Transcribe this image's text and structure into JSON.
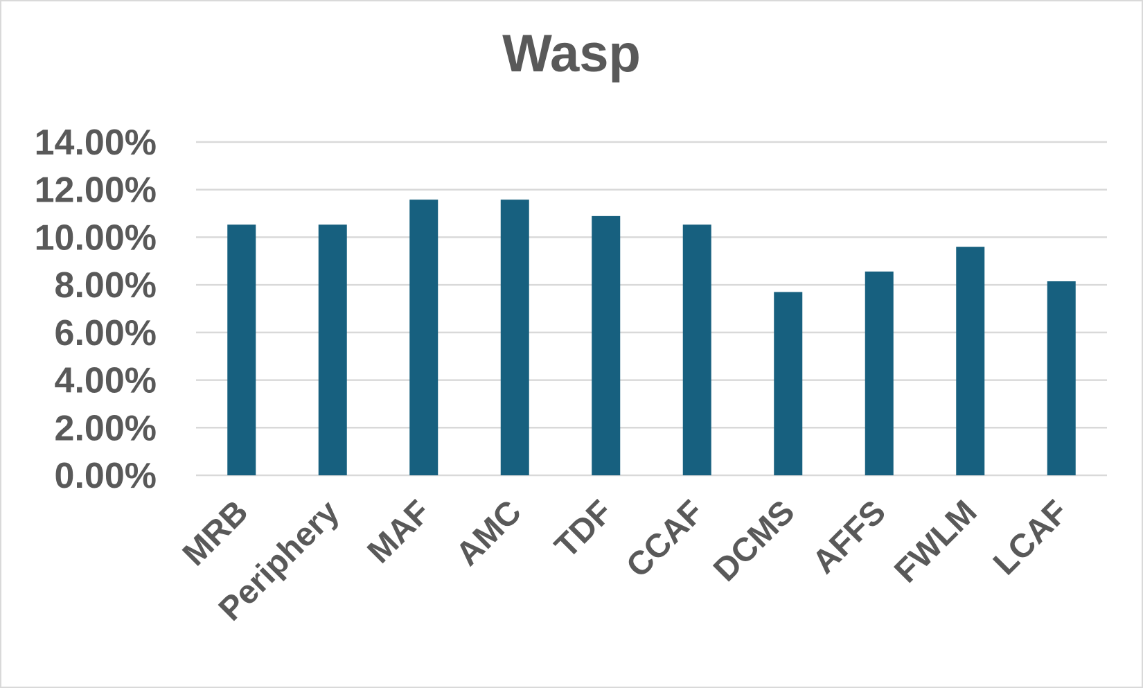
{
  "chart_data": {
    "type": "bar",
    "title": "Wasp",
    "xlabel": "",
    "ylabel": "",
    "ylim": [
      0,
      0.14
    ],
    "ytick_values": [
      0,
      0.02,
      0.04,
      0.06,
      0.08,
      0.1,
      0.12,
      0.14
    ],
    "ytick_labels": [
      "0.00%",
      "2.00%",
      "4.00%",
      "6.00%",
      "8.00%",
      "10.00%",
      "12.00%",
      "14.00%"
    ],
    "grid": true,
    "legend": "none",
    "bar_color": "#17607f",
    "grid_color": "#d9d9d9",
    "text_color": "#595959",
    "categories": [
      "MRB",
      "Periphery",
      "MAF",
      "AMC",
      "TDF",
      "CCAF",
      "DCMS",
      "AFFS",
      "FWLM",
      "LCAF"
    ],
    "values": [
      0.1053,
      0.1053,
      0.1158,
      0.1158,
      0.1089,
      0.1053,
      0.077,
      0.0856,
      0.096,
      0.0815
    ]
  }
}
